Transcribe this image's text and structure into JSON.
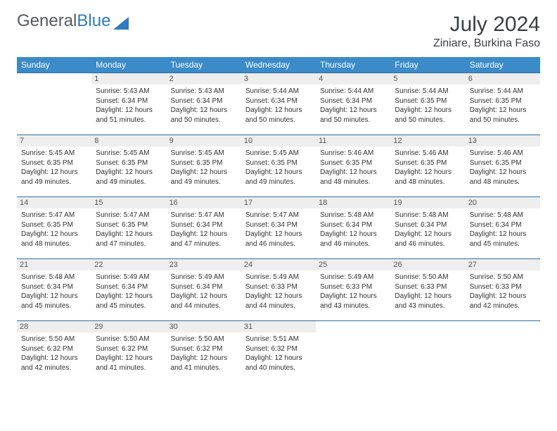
{
  "brand": {
    "part1": "General",
    "part2": "Blue"
  },
  "title": "July 2024",
  "location": "Ziniare, Burkina Faso",
  "colors": {
    "header_bg": "#3b8bc9",
    "header_border": "#2f6fa0",
    "daynum_bg": "#eeeeee",
    "text": "#333333"
  },
  "weekdays": [
    "Sunday",
    "Monday",
    "Tuesday",
    "Wednesday",
    "Thursday",
    "Friday",
    "Saturday"
  ],
  "weeks": [
    [
      {
        "n": "",
        "empty": true
      },
      {
        "n": "1",
        "sr": "5:43 AM",
        "ss": "6:34 PM",
        "dl": "12 hours and 51 minutes."
      },
      {
        "n": "2",
        "sr": "5:43 AM",
        "ss": "6:34 PM",
        "dl": "12 hours and 50 minutes."
      },
      {
        "n": "3",
        "sr": "5:44 AM",
        "ss": "6:34 PM",
        "dl": "12 hours and 50 minutes."
      },
      {
        "n": "4",
        "sr": "5:44 AM",
        "ss": "6:34 PM",
        "dl": "12 hours and 50 minutes."
      },
      {
        "n": "5",
        "sr": "5:44 AM",
        "ss": "6:35 PM",
        "dl": "12 hours and 50 minutes."
      },
      {
        "n": "6",
        "sr": "5:44 AM",
        "ss": "6:35 PM",
        "dl": "12 hours and 50 minutes."
      }
    ],
    [
      {
        "n": "7",
        "sr": "5:45 AM",
        "ss": "6:35 PM",
        "dl": "12 hours and 49 minutes."
      },
      {
        "n": "8",
        "sr": "5:45 AM",
        "ss": "6:35 PM",
        "dl": "12 hours and 49 minutes."
      },
      {
        "n": "9",
        "sr": "5:45 AM",
        "ss": "6:35 PM",
        "dl": "12 hours and 49 minutes."
      },
      {
        "n": "10",
        "sr": "5:45 AM",
        "ss": "6:35 PM",
        "dl": "12 hours and 49 minutes."
      },
      {
        "n": "11",
        "sr": "5:46 AM",
        "ss": "6:35 PM",
        "dl": "12 hours and 48 minutes."
      },
      {
        "n": "12",
        "sr": "5:46 AM",
        "ss": "6:35 PM",
        "dl": "12 hours and 48 minutes."
      },
      {
        "n": "13",
        "sr": "5:46 AM",
        "ss": "6:35 PM",
        "dl": "12 hours and 48 minutes."
      }
    ],
    [
      {
        "n": "14",
        "sr": "5:47 AM",
        "ss": "6:35 PM",
        "dl": "12 hours and 48 minutes."
      },
      {
        "n": "15",
        "sr": "5:47 AM",
        "ss": "6:35 PM",
        "dl": "12 hours and 47 minutes."
      },
      {
        "n": "16",
        "sr": "5:47 AM",
        "ss": "6:34 PM",
        "dl": "12 hours and 47 minutes."
      },
      {
        "n": "17",
        "sr": "5:47 AM",
        "ss": "6:34 PM",
        "dl": "12 hours and 46 minutes."
      },
      {
        "n": "18",
        "sr": "5:48 AM",
        "ss": "6:34 PM",
        "dl": "12 hours and 46 minutes."
      },
      {
        "n": "19",
        "sr": "5:48 AM",
        "ss": "6:34 PM",
        "dl": "12 hours and 46 minutes."
      },
      {
        "n": "20",
        "sr": "5:48 AM",
        "ss": "6:34 PM",
        "dl": "12 hours and 45 minutes."
      }
    ],
    [
      {
        "n": "21",
        "sr": "5:48 AM",
        "ss": "6:34 PM",
        "dl": "12 hours and 45 minutes."
      },
      {
        "n": "22",
        "sr": "5:49 AM",
        "ss": "6:34 PM",
        "dl": "12 hours and 45 minutes."
      },
      {
        "n": "23",
        "sr": "5:49 AM",
        "ss": "6:34 PM",
        "dl": "12 hours and 44 minutes."
      },
      {
        "n": "24",
        "sr": "5:49 AM",
        "ss": "6:33 PM",
        "dl": "12 hours and 44 minutes."
      },
      {
        "n": "25",
        "sr": "5:49 AM",
        "ss": "6:33 PM",
        "dl": "12 hours and 43 minutes."
      },
      {
        "n": "26",
        "sr": "5:50 AM",
        "ss": "6:33 PM",
        "dl": "12 hours and 43 minutes."
      },
      {
        "n": "27",
        "sr": "5:50 AM",
        "ss": "6:33 PM",
        "dl": "12 hours and 42 minutes."
      }
    ],
    [
      {
        "n": "28",
        "sr": "5:50 AM",
        "ss": "6:32 PM",
        "dl": "12 hours and 42 minutes."
      },
      {
        "n": "29",
        "sr": "5:50 AM",
        "ss": "6:32 PM",
        "dl": "12 hours and 41 minutes."
      },
      {
        "n": "30",
        "sr": "5:50 AM",
        "ss": "6:32 PM",
        "dl": "12 hours and 41 minutes."
      },
      {
        "n": "31",
        "sr": "5:51 AM",
        "ss": "6:32 PM",
        "dl": "12 hours and 40 minutes."
      },
      {
        "n": "",
        "empty": true
      },
      {
        "n": "",
        "empty": true
      },
      {
        "n": "",
        "empty": true
      }
    ]
  ],
  "labels": {
    "sunrise": "Sunrise:",
    "sunset": "Sunset:",
    "daylight": "Daylight:"
  }
}
